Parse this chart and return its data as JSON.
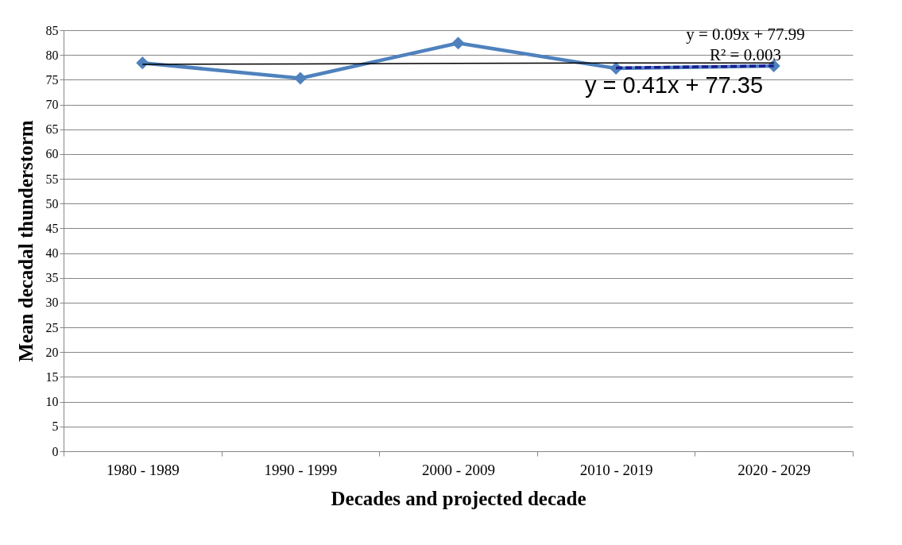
{
  "chart_data": {
    "type": "line",
    "xlabel": "Decades and projected decade",
    "ylabel": "Mean decadal thunderstorm",
    "categories": [
      "1980 - 1989",
      "1990 - 1999",
      "2000 - 2009",
      "2010 - 2019",
      "2020 - 2029"
    ],
    "series": [
      {
        "color": "#4f81bd",
        "values": [
          78.4,
          75.3,
          82.4,
          77.3,
          77.8
        ],
        "marker": "diamond",
        "line_style": "solid"
      },
      {
        "type": "line",
        "color": "#000000",
        "x": [
          "1980 - 1989",
          "1990 - 1999",
          "2000 - 2009",
          "2010 - 2019",
          "2020 - 2029"
        ],
        "values": [
          78.1,
          78.2,
          78.3,
          78.4,
          78.4
        ],
        "marker": "none",
        "line_style": "solid"
      },
      {
        "type": "line",
        "color": "#1c1c94",
        "x": [
          "2010 - 2019",
          "2020 - 2029"
        ],
        "values": [
          77.4,
          77.8
        ],
        "marker": "none",
        "line_style": "dashed"
      }
    ],
    "ylim": [
      0,
      85
    ],
    "yticks": [
      0,
      5,
      10,
      15,
      20,
      25,
      30,
      35,
      40,
      45,
      50,
      55,
      60,
      65,
      70,
      75,
      80,
      85
    ],
    "grid": "y",
    "annotations": [
      "y = 0.09x + 77.99",
      "R² = 0.003",
      "y = 0.41x + 77.35"
    ]
  }
}
